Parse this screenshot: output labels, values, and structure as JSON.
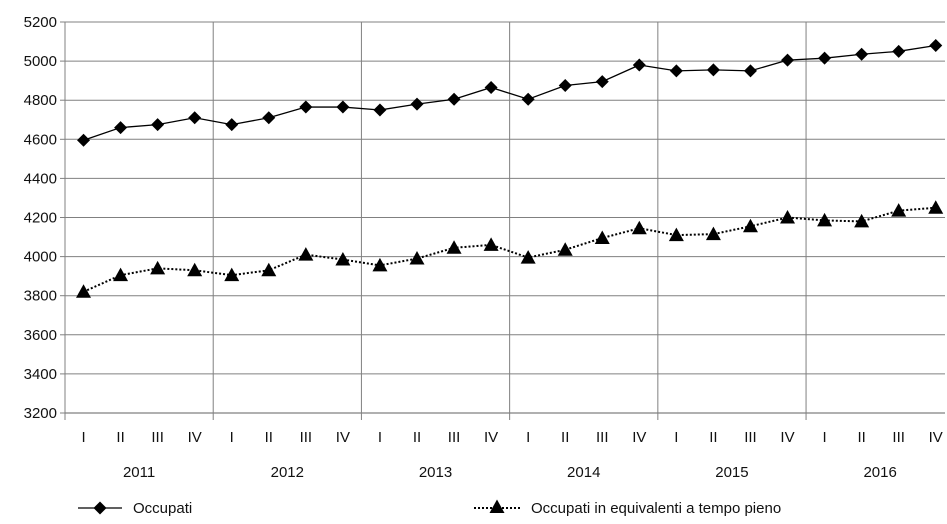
{
  "chart_data": {
    "type": "line",
    "title": "",
    "xlabel": "",
    "ylabel": "",
    "ylim": [
      3200,
      5200
    ],
    "yticks": [
      3200,
      3400,
      3600,
      3800,
      4000,
      4200,
      4400,
      4600,
      4800,
      5000,
      5200
    ],
    "quarters": [
      "I",
      "II",
      "III",
      "IV"
    ],
    "years": [
      "2011",
      "2012",
      "2013",
      "2014",
      "2015",
      "2016"
    ],
    "grid": true,
    "legend_position": "bottom",
    "series": [
      {
        "name": "Occupati",
        "style": "solid",
        "marker": "diamond",
        "color": "#000000",
        "values": [
          4595,
          4660,
          4675,
          4710,
          4675,
          4710,
          4765,
          4765,
          4750,
          4780,
          4805,
          4865,
          4805,
          4875,
          4895,
          4980,
          4950,
          4955,
          4950,
          5005,
          5015,
          5035,
          5050,
          5080
        ]
      },
      {
        "name": "Occupati in equivalenti a tempo pieno",
        "style": "dotted",
        "marker": "triangle",
        "color": "#000000",
        "values": [
          3820,
          3905,
          3940,
          3930,
          3905,
          3930,
          4010,
          3985,
          3955,
          3990,
          4045,
          4060,
          3995,
          4035,
          4095,
          4145,
          4110,
          4115,
          4155,
          4200,
          4185,
          4180,
          4235,
          4250
        ]
      }
    ]
  }
}
